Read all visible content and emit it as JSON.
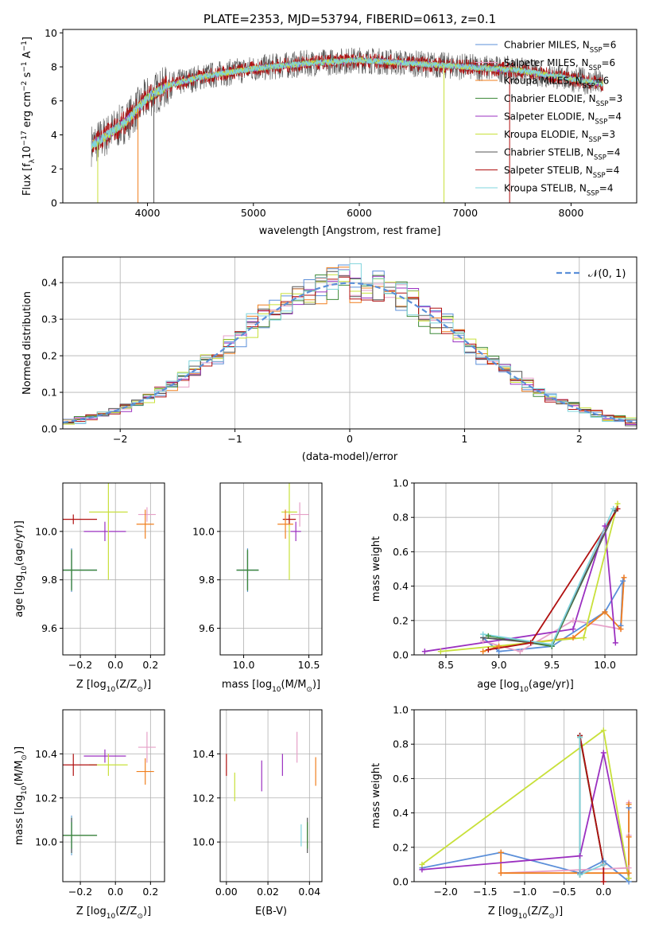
{
  "figure": {
    "title": "PLATE=2353, MJD=53794, FIBERID=0613, z=0.1"
  },
  "series": [
    {
      "name": "Chabrier MILES, N$_{SSP}$=6",
      "label_main": "Chabrier MILES, N",
      "label_sub": "SSP",
      "label_tail": "=6",
      "color": "#5b8fd9"
    },
    {
      "name": "Salpeter MILES, N$_{SSP}$=6",
      "label_main": "Salpeter MILES, N",
      "label_sub": "SSP",
      "label_tail": "=6",
      "color": "#e6a0c8"
    },
    {
      "name": "Kroupa MILES, N$_{SSP}$=6",
      "label_main": "Kroupa MILES, N",
      "label_sub": "SSP",
      "label_tail": "=6",
      "color": "#f07f1e"
    },
    {
      "name": "Chabrier ELODIE, N$_{SSP}$=3",
      "label_main": "Chabrier ELODIE, N",
      "label_sub": "SSP",
      "label_tail": "=3",
      "color": "#3f8a3a"
    },
    {
      "name": "Salpeter ELODIE, N$_{SSP}$=4",
      "label_main": "Salpeter ELODIE, N",
      "label_sub": "SSP",
      "label_tail": "=4",
      "color": "#9b30c0"
    },
    {
      "name": "Kroupa ELODIE, N$_{SSP}$=3",
      "label_main": "Kroupa ELODIE, N",
      "label_sub": "SSP",
      "label_tail": "=3",
      "color": "#c8e03a"
    },
    {
      "name": "Chabrier STELIB, N$_{SSP}$=4",
      "label_main": "Chabrier STELIB, N",
      "label_sub": "SSP",
      "label_tail": "=4",
      "color": "#555555"
    },
    {
      "name": "Salpeter STELIB, N$_{SSP}$=4",
      "label_main": "Salpeter STELIB, N",
      "label_sub": "SSP",
      "label_tail": "=4",
      "color": "#b01010"
    },
    {
      "name": "Kroupa STELIB, N$_{SSP}$=4",
      "label_main": "Kroupa STELIB, N",
      "label_sub": "SSP",
      "label_tail": "=4",
      "color": "#7fd4dc"
    }
  ],
  "chart_data": [
    {
      "id": "spectrum",
      "type": "line",
      "title": "PLATE=2353, MJD=53794, FIBERID=0613, z=0.1",
      "xlabel": "wavelength [Angstrom, rest frame]",
      "ylabel_parts": [
        "Flux [f",
        "λ",
        "10",
        "−17",
        " erg cm",
        "−2",
        " s",
        "−1",
        " A",
        "−1",
        "]"
      ],
      "xlim": [
        3200,
        8620
      ],
      "ylim": [
        0,
        10.2
      ],
      "xticks": [
        4000,
        5000,
        6000,
        7000,
        8000
      ],
      "yticks": [
        0,
        2,
        4,
        6,
        8,
        10
      ],
      "legend": "right",
      "continuum": {
        "x": [
          3470,
          3600,
          3800,
          4000,
          4200,
          4500,
          5000,
          5500,
          6000,
          6500,
          7000,
          7500,
          8000,
          8300
        ],
        "y": [
          3.4,
          3.9,
          4.8,
          6.2,
          6.9,
          7.4,
          7.9,
          8.2,
          8.4,
          8.2,
          8.0,
          7.8,
          7.3,
          7.0
        ]
      },
      "spikes_down": [
        {
          "x": 3530,
          "y": 0
        },
        {
          "x": 3910,
          "y": 0
        },
        {
          "x": 4060,
          "y": 0
        },
        {
          "x": 6800,
          "y": 0
        },
        {
          "x": 7420,
          "y": 0
        }
      ]
    },
    {
      "id": "residuals",
      "type": "histogram",
      "xlabel": "(data-model)/error",
      "ylabel": "Normed distribution",
      "xlim": [
        -2.5,
        2.5
      ],
      "ylim": [
        0,
        0.47
      ],
      "xticks": [
        -2,
        -1,
        0,
        1,
        2
      ],
      "yticks": [
        0.0,
        0.1,
        0.2,
        0.3,
        0.4
      ],
      "legend": "top-right",
      "reference_label": "𝒩(0, 1)",
      "reference_color": "#5b8fd9",
      "bin_width": 0.1
    },
    {
      "id": "age_vs_Z",
      "type": "errorbar",
      "xlabel_parts": [
        "Z [log",
        "10",
        "(Z/Z",
        "⊙",
        ")]"
      ],
      "ylabel_parts": [
        "age  [log",
        "10",
        "(age/yr)]"
      ],
      "xlim": [
        -0.3,
        0.28
      ],
      "ylim": [
        9.49,
        10.2
      ],
      "xticks": [
        -0.2,
        0.0,
        0.2
      ],
      "yticks": [
        9.6,
        9.8,
        10.0
      ],
      "points": [
        {
          "s": 0,
          "x": -0.25,
          "y": 9.84,
          "xe": 0.29,
          "ye": 0.18
        },
        {
          "s": 8,
          "x": -0.25,
          "y": 9.84,
          "xe": 0.29,
          "ye": 0.17
        },
        {
          "s": 6,
          "x": -0.25,
          "y": 9.84,
          "xe": 0.29,
          "ye": 0.16
        },
        {
          "s": 3,
          "x": -0.25,
          "y": 9.84,
          "xe": 0.29,
          "ye": 0.17
        },
        {
          "s": 4,
          "x": -0.06,
          "y": 10.0,
          "xe": 0.24,
          "ye": 0.08
        },
        {
          "s": 5,
          "x": -0.04,
          "y": 10.08,
          "xe": 0.22,
          "ye": 0.56
        },
        {
          "s": 7,
          "x": -0.24,
          "y": 10.05,
          "xe": 0.27,
          "ye": 0.04
        },
        {
          "s": 1,
          "x": 0.18,
          "y": 10.07,
          "xe": 0.1,
          "ye": 0.06
        },
        {
          "s": 2,
          "x": 0.17,
          "y": 10.03,
          "xe": 0.1,
          "ye": 0.12
        }
      ]
    },
    {
      "id": "age_vs_mass",
      "type": "errorbar",
      "xlabel_parts": [
        "mass [log",
        "10",
        "(M/M",
        "⊙",
        ")]"
      ],
      "ylabel_parts": [],
      "xlim": [
        9.82,
        10.6
      ],
      "ylim": [
        9.49,
        10.2
      ],
      "xticks": [
        10.0,
        10.5
      ],
      "yticks": [
        9.6,
        9.8,
        10.0
      ],
      "points": [
        {
          "s": 0,
          "x": 10.03,
          "y": 9.84,
          "xe": 0.17,
          "ye": 0.18
        },
        {
          "s": 8,
          "x": 10.03,
          "y": 9.84,
          "xe": 0.17,
          "ye": 0.17
        },
        {
          "s": 6,
          "x": 10.03,
          "y": 9.84,
          "xe": 0.17,
          "ye": 0.16
        },
        {
          "s": 3,
          "x": 10.03,
          "y": 9.84,
          "xe": 0.17,
          "ye": 0.17
        },
        {
          "s": 4,
          "x": 10.4,
          "y": 10.0,
          "xe": 0.08,
          "ye": 0.08
        },
        {
          "s": 5,
          "x": 10.35,
          "y": 10.08,
          "xe": 0.12,
          "ye": 0.56
        },
        {
          "s": 7,
          "x": 10.35,
          "y": 10.05,
          "xe": 0.1,
          "ye": 0.04
        },
        {
          "s": 1,
          "x": 10.43,
          "y": 10.07,
          "xe": 0.14,
          "ye": 0.1
        },
        {
          "s": 2,
          "x": 10.32,
          "y": 10.03,
          "xe": 0.12,
          "ye": 0.12
        }
      ]
    },
    {
      "id": "weight_vs_age",
      "type": "line",
      "xlabel_parts": [
        "age  [log",
        "10",
        "(age/yr)]"
      ],
      "ylabel": "mass weight",
      "xlim": [
        8.2,
        10.3
      ],
      "ylim": [
        0,
        1.0
      ],
      "xticks": [
        8.5,
        9.0,
        9.5,
        10.0
      ],
      "yticks": [
        0.0,
        0.2,
        0.4,
        0.6,
        0.8,
        1.0
      ],
      "series": [
        {
          "s": 0,
          "x": [
            8.85,
            9.0,
            9.5,
            10.0,
            10.17,
            10.15
          ],
          "y": [
            0.1,
            0.02,
            0.05,
            0.25,
            0.43,
            0.17
          ]
        },
        {
          "s": 1,
          "x": [
            8.85,
            9.2,
            9.7,
            10.15,
            10.18
          ],
          "y": [
            0.08,
            0.02,
            0.2,
            0.15,
            0.45
          ]
        },
        {
          "s": 2,
          "x": [
            8.85,
            9.0,
            9.7,
            10.0,
            10.15,
            10.18
          ],
          "y": [
            0.02,
            0.05,
            0.1,
            0.25,
            0.15,
            0.45
          ]
        },
        {
          "s": 3,
          "x": [
            8.9,
            9.5,
            10.1
          ],
          "y": [
            0.11,
            0.05,
            0.84
          ]
        },
        {
          "s": 4,
          "x": [
            8.3,
            9.7,
            10.0,
            10.1
          ],
          "y": [
            0.02,
            0.15,
            0.75,
            0.07
          ]
        },
        {
          "s": 5,
          "x": [
            8.45,
            9.8,
            10.12
          ],
          "y": [
            0.02,
            0.1,
            0.88
          ]
        },
        {
          "s": 6,
          "x": [
            8.85,
            9.5,
            10.1
          ],
          "y": [
            0.1,
            0.06,
            0.84
          ]
        },
        {
          "s": 7,
          "x": [
            8.9,
            9.3,
            10.12
          ],
          "y": [
            0.03,
            0.07,
            0.85
          ]
        },
        {
          "s": 8,
          "x": [
            8.85,
            9.5,
            10.08
          ],
          "y": [
            0.12,
            0.06,
            0.85
          ]
        }
      ]
    },
    {
      "id": "mass_vs_Z",
      "type": "errorbar",
      "xlabel_parts": [
        "Z [log",
        "10",
        "(Z/Z",
        "⊙",
        ")]"
      ],
      "ylabel_parts": [
        "mass [log",
        "10",
        "(M/M",
        "⊙",
        ")]"
      ],
      "xlim": [
        -0.3,
        0.28
      ],
      "ylim": [
        9.82,
        10.6
      ],
      "xticks": [
        -0.2,
        0.0,
        0.2
      ],
      "yticks": [
        10.0,
        10.2,
        10.4
      ],
      "points": [
        {
          "s": 0,
          "x": -0.25,
          "y": 10.03,
          "xe": 0.29,
          "ye": 0.18
        },
        {
          "s": 8,
          "x": -0.25,
          "y": 10.03,
          "xe": 0.29,
          "ye": 0.17
        },
        {
          "s": 6,
          "x": -0.25,
          "y": 10.03,
          "xe": 0.29,
          "ye": 0.16
        },
        {
          "s": 3,
          "x": -0.25,
          "y": 10.03,
          "xe": 0.29,
          "ye": 0.12
        },
        {
          "s": 4,
          "x": -0.06,
          "y": 10.39,
          "xe": 0.24,
          "ye": 0.06
        },
        {
          "s": 5,
          "x": -0.04,
          "y": 10.35,
          "xe": 0.22,
          "ye": 0.1
        },
        {
          "s": 7,
          "x": -0.24,
          "y": 10.35,
          "xe": 0.27,
          "ye": 0.1
        },
        {
          "s": 1,
          "x": 0.18,
          "y": 10.43,
          "xe": 0.1,
          "ye": 0.14
        },
        {
          "s": 2,
          "x": 0.17,
          "y": 10.32,
          "xe": 0.1,
          "ye": 0.12
        }
      ]
    },
    {
      "id": "mass_vs_ebv",
      "type": "errorbar",
      "xlabel": "E(B-V)",
      "ylabel_parts": [],
      "xlim": [
        -0.003,
        0.046
      ],
      "ylim": [
        9.82,
        10.6
      ],
      "xticks": [
        0.0,
        0.02,
        0.04
      ],
      "yticks": [
        10.0,
        10.2,
        10.4
      ],
      "points": [
        {
          "s": 7,
          "x": 0.0,
          "y": 10.35,
          "xe": 0,
          "ye": 0.1
        },
        {
          "s": 5,
          "x": 0.004,
          "y": 10.25,
          "xe": 0,
          "ye": 0.13
        },
        {
          "s": 4,
          "x": 0.017,
          "y": 10.3,
          "xe": 0,
          "ye": 0.14
        },
        {
          "s": 4,
          "x": 0.027,
          "y": 10.35,
          "xe": 0,
          "ye": 0.1
        },
        {
          "s": 1,
          "x": 0.034,
          "y": 10.43,
          "xe": 0,
          "ye": 0.14
        },
        {
          "s": 8,
          "x": 0.036,
          "y": 10.03,
          "xe": 0,
          "ye": 0.1
        },
        {
          "s": 6,
          "x": 0.039,
          "y": 10.03,
          "xe": 0,
          "ye": 0.16
        },
        {
          "s": 3,
          "x": 0.039,
          "y": 10.03,
          "xe": 0,
          "ye": 0.12
        },
        {
          "s": 2,
          "x": 0.043,
          "y": 10.32,
          "xe": 0,
          "ye": 0.13
        }
      ]
    },
    {
      "id": "weight_vs_Z",
      "type": "line",
      "xlabel_parts": [
        "Z [log",
        "10",
        "(Z/Z",
        "⊙",
        ")]"
      ],
      "ylabel": "mass weight",
      "xlim": [
        -2.4,
        0.42
      ],
      "ylim": [
        0,
        1.0
      ],
      "xticks": [
        -2.0,
        -1.5,
        -1.0,
        -0.5,
        0.0
      ],
      "yticks": [
        0.0,
        0.2,
        0.4,
        0.6,
        0.8,
        1.0
      ],
      "series": [
        {
          "s": 0,
          "x": [
            -2.3,
            -1.3,
            -0.3,
            0.0,
            0.32,
            0.32
          ],
          "y": [
            0.08,
            0.17,
            0.05,
            0.12,
            0.0,
            0.43
          ]
        },
        {
          "s": 1,
          "x": [
            -1.3,
            0.32,
            0.32,
            0.32
          ],
          "y": [
            0.05,
            0.08,
            0.27,
            0.46
          ]
        },
        {
          "s": 2,
          "x": [
            -1.3,
            -1.3,
            0.32,
            0.32,
            0.32
          ],
          "y": [
            0.17,
            0.05,
            0.05,
            0.26,
            0.45
          ]
        },
        {
          "s": 3,
          "x": [
            -0.3,
            -0.3,
            0.0
          ],
          "y": [
            0.04,
            0.84,
            0.1
          ]
        },
        {
          "s": 4,
          "x": [
            -2.3,
            -0.3,
            0.0,
            0.32
          ],
          "y": [
            0.07,
            0.15,
            0.75,
            0.02
          ]
        },
        {
          "s": 5,
          "x": [
            -2.3,
            0.0,
            0.32
          ],
          "y": [
            0.1,
            0.88,
            0.02
          ]
        },
        {
          "s": 6,
          "x": [
            -0.3,
            -0.3,
            0.0
          ],
          "y": [
            0.04,
            0.85,
            0.1
          ]
        },
        {
          "s": 7,
          "x": [
            -0.3,
            0.0,
            0.0
          ],
          "y": [
            0.85,
            0.1,
            0.0
          ]
        },
        {
          "s": 8,
          "x": [
            -0.3,
            -0.3,
            0.0
          ],
          "y": [
            0.84,
            0.04,
            0.1
          ]
        }
      ]
    }
  ]
}
